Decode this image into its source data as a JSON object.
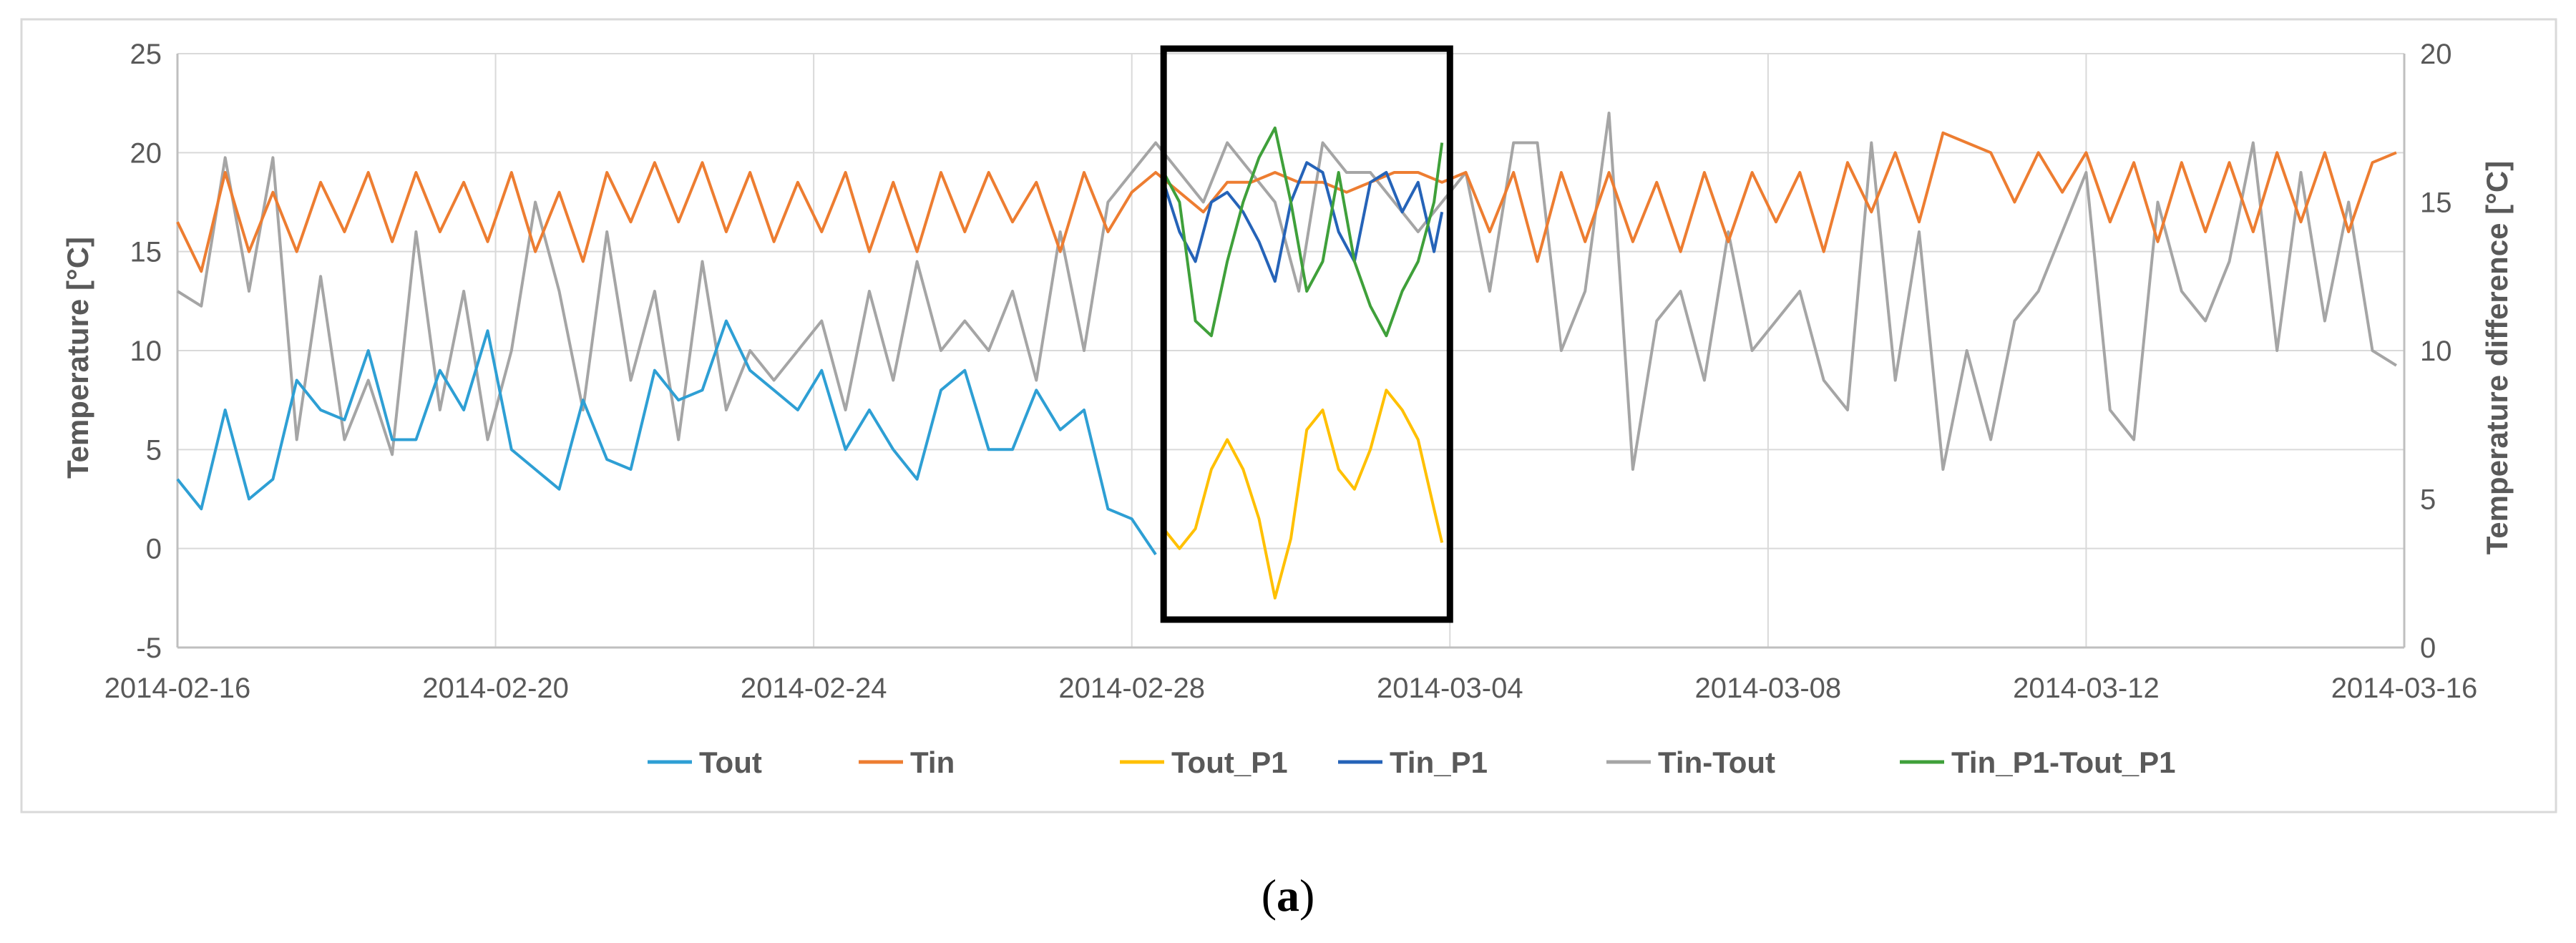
{
  "caption": {
    "open": "(",
    "letter": "a",
    "close": ")"
  },
  "colors": {
    "Tout": "#2e9fd4",
    "Tin": "#ed7d31",
    "Tout_P1": "#ffc000",
    "Tin_P1": "#2563b8",
    "Tin-Tout": "#a5a5a5",
    "Tin_P1-Tout_P1": "#3fa03a",
    "grid": "#d9d9d9",
    "frame": "#000000"
  },
  "chart_data": {
    "type": "line",
    "title": "",
    "xlabel": "",
    "ylabel": "Temperature [°C]",
    "y2label": "Temperature difference [°C]",
    "ylim": [
      -5,
      25
    ],
    "y2lim": [
      0,
      20
    ],
    "yticks": [
      "-5",
      "0",
      "5",
      "10",
      "15",
      "20",
      "25"
    ],
    "y2ticks": [
      "0",
      "5",
      "10",
      "15",
      "20"
    ],
    "xlim_days": [
      0,
      28
    ],
    "xticks": [
      "2014-02-16",
      "2014-02-20",
      "2014-02-24",
      "2014-02-28",
      "2014-03-04",
      "2014-03-08",
      "2014-03-12",
      "2014-03-16"
    ],
    "highlight_box_days": [
      12.4,
      16.0
    ],
    "legend": [
      "Tout",
      "Tin",
      "Tout_P1",
      "Tin_P1",
      "Tin-Tout",
      "Tin_P1-Tout_P1"
    ],
    "series": [
      {
        "name": "Tout",
        "axis": "left",
        "x_days": [
          0,
          0.3,
          0.6,
          0.9,
          1.2,
          1.5,
          1.8,
          2.1,
          2.4,
          2.7,
          3.0,
          3.3,
          3.6,
          3.9,
          4.2,
          4.5,
          4.8,
          5.1,
          5.4,
          5.7,
          6.0,
          6.3,
          6.6,
          6.9,
          7.2,
          7.5,
          7.8,
          8.1,
          8.4,
          8.7,
          9.0,
          9.3,
          9.6,
          9.9,
          10.2,
          10.5,
          10.8,
          11.1,
          11.4,
          11.7,
          12.0,
          12.3
        ],
        "values": [
          3.5,
          2,
          7,
          2.5,
          3.5,
          8.5,
          7,
          6.5,
          10,
          5.5,
          5.5,
          9,
          7,
          11,
          5,
          4,
          3,
          7.5,
          4.5,
          4,
          9,
          7.5,
          8,
          11.5,
          9,
          8,
          7,
          9,
          5,
          7,
          5,
          3.5,
          8,
          9,
          5,
          5,
          8,
          6,
          7,
          2,
          1.5,
          -0.3
        ]
      },
      {
        "name": "Tin",
        "axis": "left",
        "x_days": [
          0,
          0.3,
          0.6,
          0.9,
          1.2,
          1.5,
          1.8,
          2.1,
          2.4,
          2.7,
          3.0,
          3.3,
          3.6,
          3.9,
          4.2,
          4.5,
          4.8,
          5.1,
          5.4,
          5.7,
          6.0,
          6.3,
          6.6,
          6.9,
          7.2,
          7.5,
          7.8,
          8.1,
          8.4,
          8.7,
          9.0,
          9.3,
          9.6,
          9.9,
          10.2,
          10.5,
          10.8,
          11.1,
          11.4,
          11.7,
          12.0,
          12.3,
          12.6,
          12.9,
          13.2,
          13.5,
          13.8,
          14.1,
          14.4,
          14.7,
          15.0,
          15.3,
          15.6,
          15.9,
          16.2,
          16.5,
          16.8,
          17.1,
          17.4,
          17.7,
          18.0,
          18.3,
          18.6,
          18.9,
          19.2,
          19.5,
          19.8,
          20.1,
          20.4,
          20.7,
          21.0,
          21.3,
          21.6,
          21.9,
          22.2,
          22.5,
          22.8,
          23.1,
          23.4,
          23.7,
          24.0,
          24.3,
          24.6,
          24.9,
          25.2,
          25.5,
          25.8,
          26.1,
          26.4,
          26.7,
          27.0,
          27.3,
          27.6,
          27.9
        ],
        "values": [
          16.5,
          14,
          19,
          15,
          18,
          15,
          18.5,
          16,
          19,
          15.5,
          19,
          16,
          18.5,
          15.5,
          19,
          15,
          18,
          14.5,
          19,
          16.5,
          19.5,
          16.5,
          19.5,
          16,
          19,
          15.5,
          18.5,
          16,
          19,
          15,
          18.5,
          15,
          19,
          16,
          19,
          16.5,
          18.5,
          15,
          19,
          16,
          18,
          19,
          18,
          17,
          18.5,
          18.5,
          19,
          18.5,
          18.5,
          18,
          18.5,
          19,
          19,
          18.5,
          19,
          16,
          19,
          14.5,
          19,
          15.5,
          19,
          15.5,
          18.5,
          15,
          19,
          15.5,
          19,
          16.5,
          19,
          15,
          19.5,
          17,
          20,
          16.5,
          21,
          20.5,
          20,
          17.5,
          20,
          18,
          20,
          16.5,
          19.5,
          15.5,
          19.5,
          16,
          19.5,
          16,
          20,
          16.5,
          20,
          16,
          19.5,
          20
        ]
      },
      {
        "name": "Tout_P1",
        "axis": "left",
        "x_days": [
          12.4,
          12.6,
          12.8,
          13.0,
          13.2,
          13.4,
          13.6,
          13.8,
          14.0,
          14.2,
          14.4,
          14.6,
          14.8,
          15.0,
          15.2,
          15.4,
          15.6,
          15.8,
          15.9
        ],
        "values": [
          1,
          0,
          1,
          4,
          5.5,
          4,
          1.5,
          -2.5,
          0.5,
          6,
          7,
          4,
          3,
          5,
          8,
          7,
          5.5,
          2,
          0.3
        ]
      },
      {
        "name": "Tin_P1",
        "axis": "left",
        "x_days": [
          12.4,
          12.6,
          12.8,
          13.0,
          13.2,
          13.4,
          13.6,
          13.8,
          14.0,
          14.2,
          14.4,
          14.6,
          14.8,
          15.0,
          15.2,
          15.4,
          15.6,
          15.8,
          15.9
        ],
        "values": [
          18.5,
          16,
          14.5,
          17.5,
          18,
          17,
          15.5,
          13.5,
          17.5,
          19.5,
          19,
          16,
          14.5,
          18.5,
          19,
          17,
          18.5,
          15,
          17
        ]
      },
      {
        "name": "Tin-Tout",
        "axis": "right",
        "x_days": [
          0,
          0.3,
          0.6,
          0.9,
          1.2,
          1.5,
          1.8,
          2.1,
          2.4,
          2.7,
          3.0,
          3.3,
          3.6,
          3.9,
          4.2,
          4.5,
          4.8,
          5.1,
          5.4,
          5.7,
          6.0,
          6.3,
          6.6,
          6.9,
          7.2,
          7.5,
          7.8,
          8.1,
          8.4,
          8.7,
          9.0,
          9.3,
          9.6,
          9.9,
          10.2,
          10.5,
          10.8,
          11.1,
          11.4,
          11.7,
          12.0,
          12.3,
          12.6,
          12.9,
          13.2,
          13.5,
          13.8,
          14.1,
          14.4,
          14.7,
          15.0,
          15.3,
          15.6,
          15.9,
          16.2,
          16.5,
          16.8,
          17.1,
          17.4,
          17.7,
          18.0,
          18.3,
          18.6,
          18.9,
          19.2,
          19.5,
          19.8,
          20.1,
          20.4,
          20.7,
          21.0,
          21.3,
          21.6,
          21.9,
          22.2,
          22.5,
          22.8,
          23.1,
          23.4,
          23.7,
          24.0,
          24.3,
          24.6,
          24.9,
          25.2,
          25.5,
          25.8,
          26.1,
          26.4,
          26.7,
          27.0,
          27.3,
          27.6,
          27.9
        ],
        "values": [
          12,
          11.5,
          16.5,
          12,
          16.5,
          7,
          12.5,
          7,
          9,
          6.5,
          14,
          8,
          12,
          7,
          10,
          15,
          12,
          8,
          14,
          9,
          12,
          7,
          13,
          8,
          10,
          9,
          10,
          11,
          8,
          12,
          9,
          13,
          10,
          11,
          10,
          12,
          9,
          14,
          10,
          15,
          16,
          17,
          16,
          15,
          17,
          16,
          15,
          12,
          17,
          16,
          16,
          15,
          14,
          15,
          16,
          12,
          17,
          17,
          10,
          12,
          18,
          6,
          11,
          12,
          9,
          14,
          10,
          11,
          12,
          9,
          8,
          17,
          9,
          14,
          6,
          10,
          7,
          11,
          12,
          14,
          16,
          8,
          7,
          15,
          12,
          11,
          13,
          17,
          10,
          16,
          11,
          15,
          10,
          9.5
        ]
      },
      {
        "name": "Tin_P1-Tout_P1",
        "axis": "right",
        "x_days": [
          12.4,
          12.6,
          12.8,
          13.0,
          13.2,
          13.4,
          13.6,
          13.8,
          14.0,
          14.2,
          14.4,
          14.6,
          14.8,
          15.0,
          15.2,
          15.4,
          15.6,
          15.8,
          15.9
        ],
        "values": [
          16,
          15,
          11,
          10.5,
          13,
          15,
          16.5,
          17.5,
          15,
          12,
          13,
          16,
          13,
          11.5,
          10.5,
          12,
          13,
          15,
          17
        ]
      }
    ]
  }
}
